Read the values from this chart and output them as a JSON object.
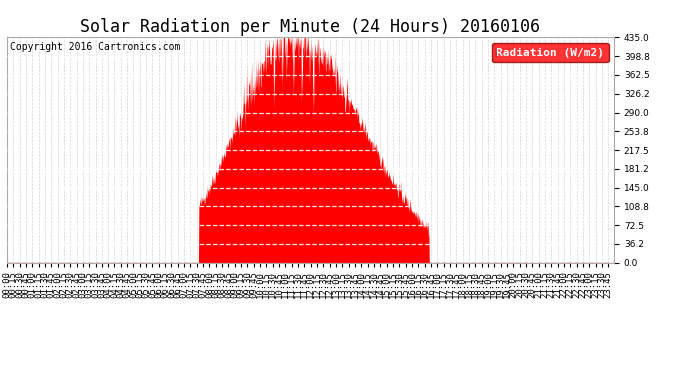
{
  "title": "Solar Radiation per Minute (24 Hours) 20160106",
  "copyright_text": "Copyright 2016 Cartronics.com",
  "legend_label": "Radiation (W/m2)",
  "background_color": "#ffffff",
  "plot_bg_color": "#ffffff",
  "bar_color": "#ff0000",
  "dashed_white_color": "#cccccc",
  "zero_line_color": "#ff0000",
  "vert_grid_color": "#cccccc",
  "ylim": [
    0.0,
    435.0
  ],
  "yticks": [
    0.0,
    36.2,
    72.5,
    108.8,
    145.0,
    181.2,
    217.5,
    253.8,
    290.0,
    326.2,
    362.5,
    398.8,
    435.0
  ],
  "title_fontsize": 12,
  "tick_fontsize": 6.5,
  "copyright_fontsize": 7,
  "legend_fontsize": 8
}
